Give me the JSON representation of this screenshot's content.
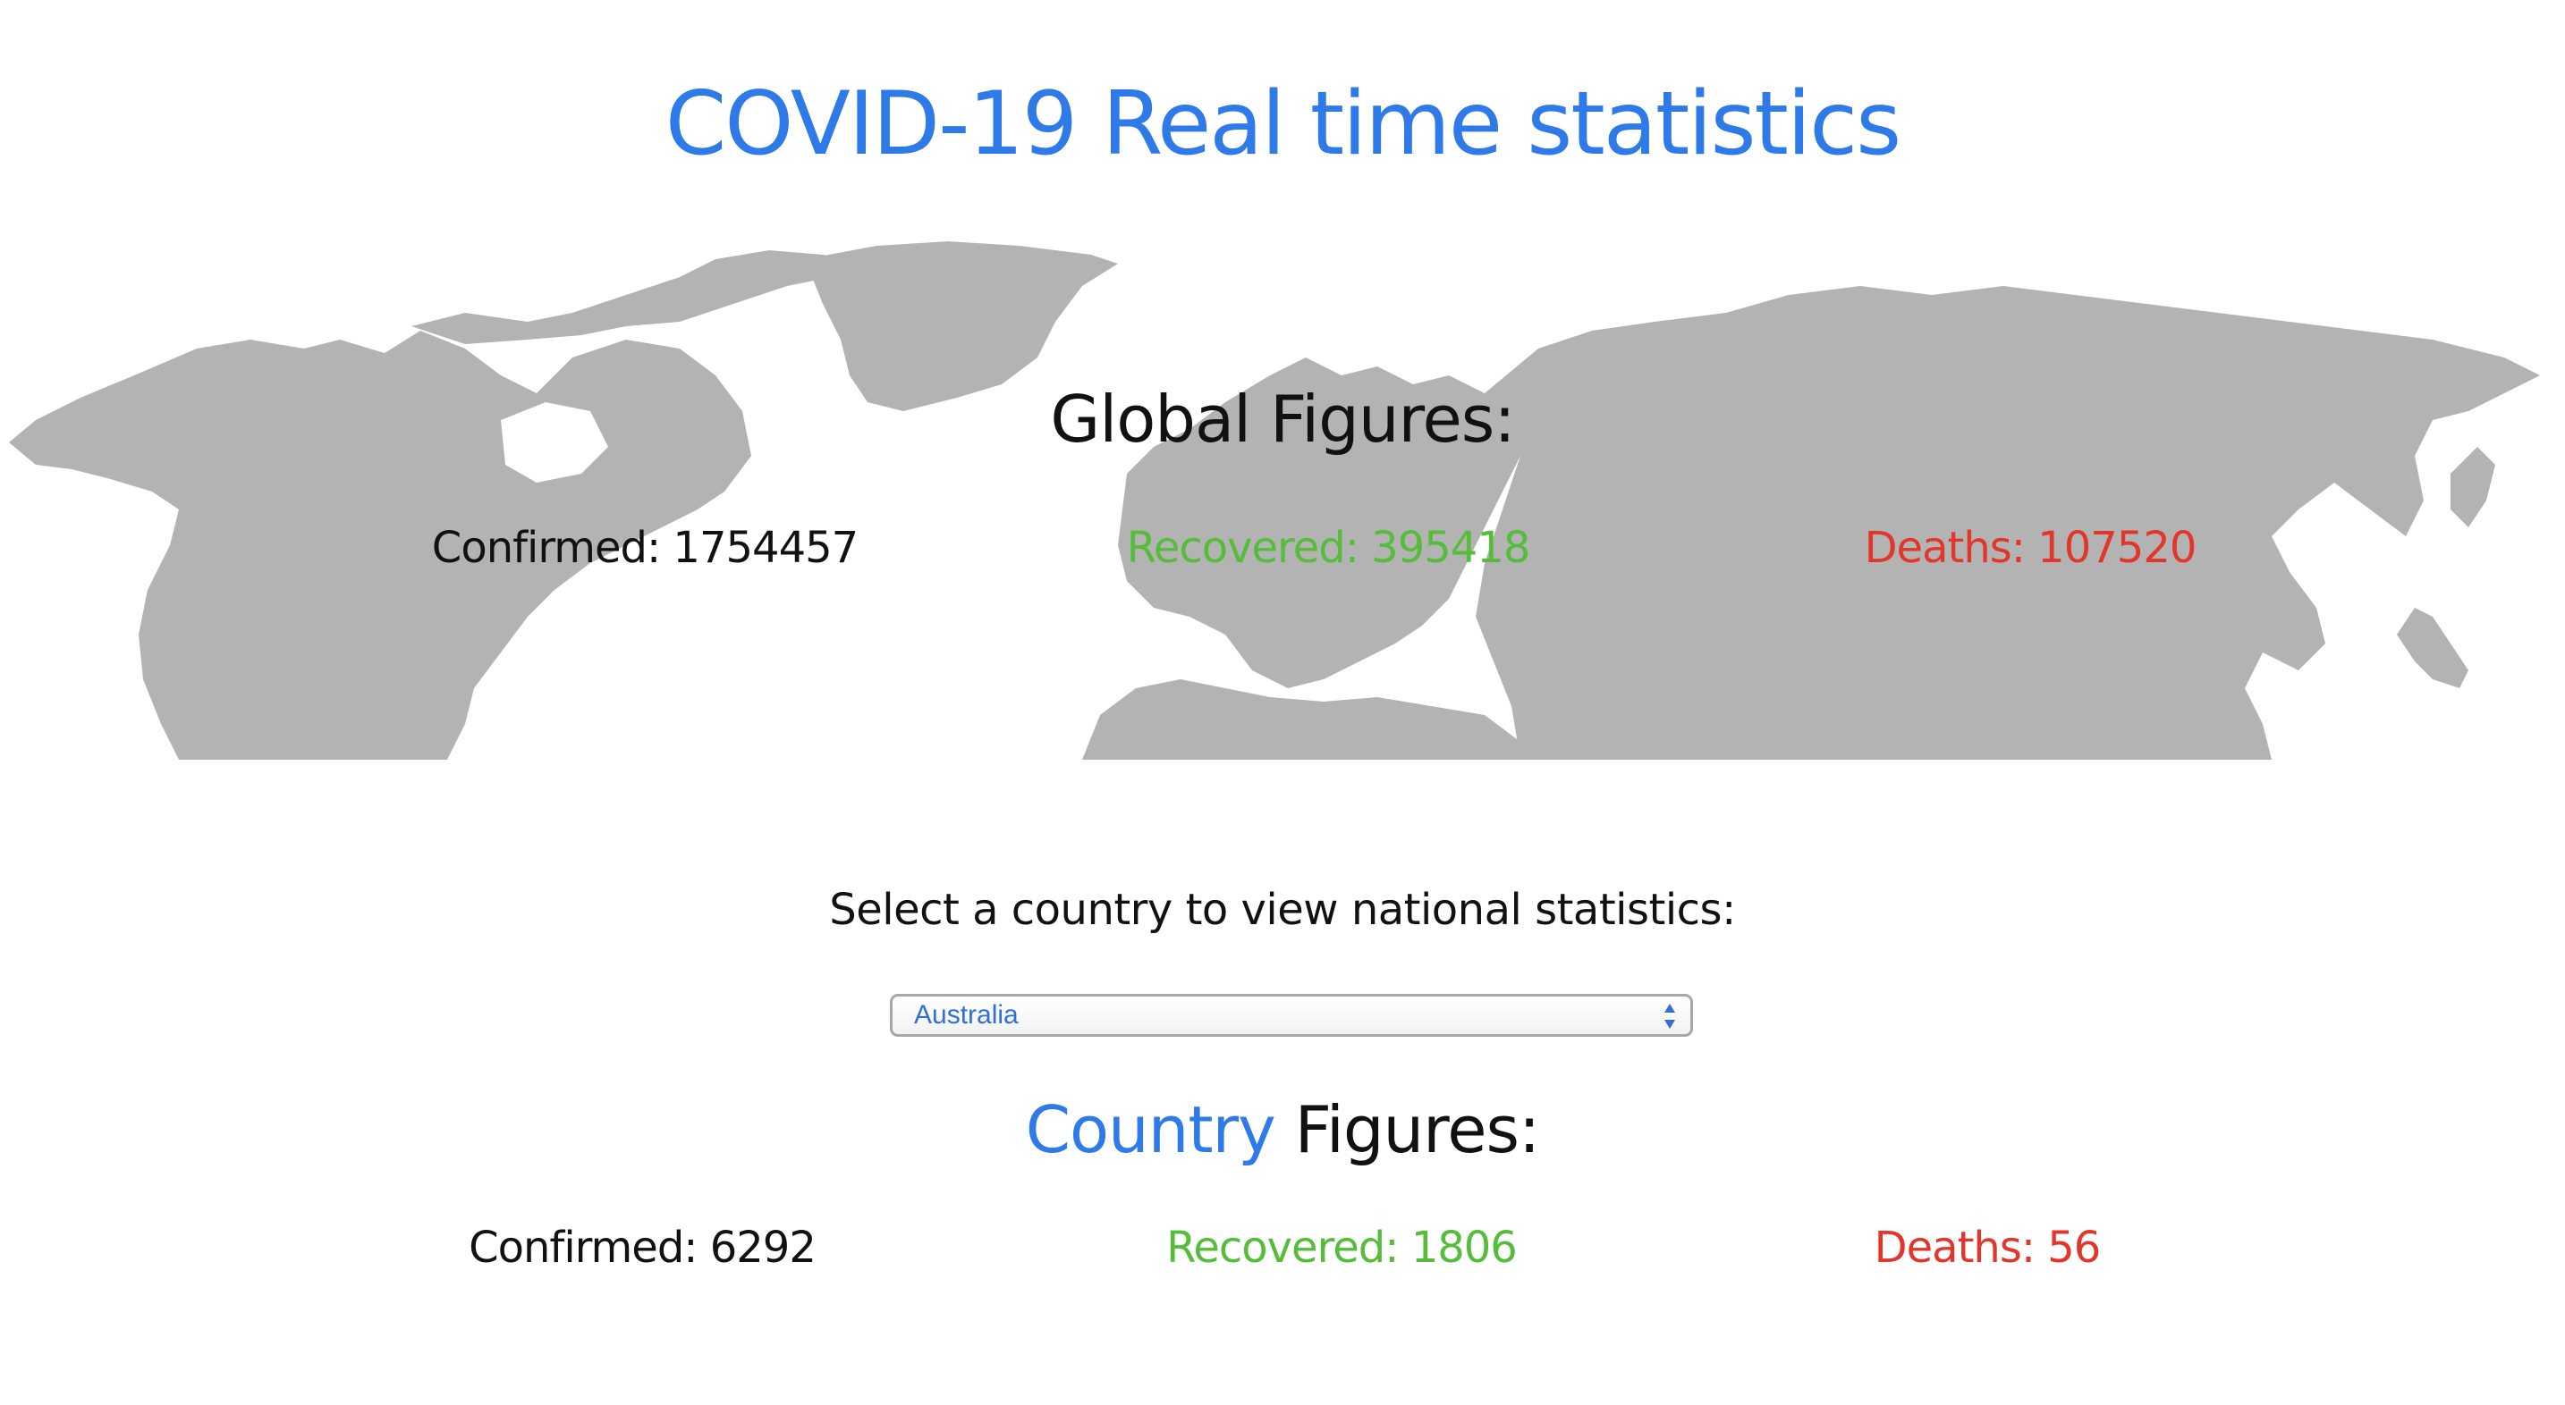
{
  "header": {
    "title": "COVID-19 Real time statistics"
  },
  "global": {
    "heading": "Global Figures:",
    "confirmed": "Confirmed: 1754457",
    "recovered": "Recovered: 395418",
    "deaths": "Deaths: 107520"
  },
  "selector": {
    "prompt": "Select a country to view national statistics:",
    "selected": "Australia"
  },
  "country": {
    "heading_word1": "Country",
    "heading_word2": "Figures:",
    "confirmed": "Confirmed: 6292",
    "recovered": "Recovered: 1806",
    "deaths": "Deaths: 56"
  },
  "colors": {
    "accent": "#2f7ae9",
    "recovered": "#55bd3a",
    "deaths": "#e2362b",
    "map": "#b3b3b3"
  },
  "icons": {
    "select_arrow": "updown-chevron-icon",
    "background": "world-map"
  }
}
